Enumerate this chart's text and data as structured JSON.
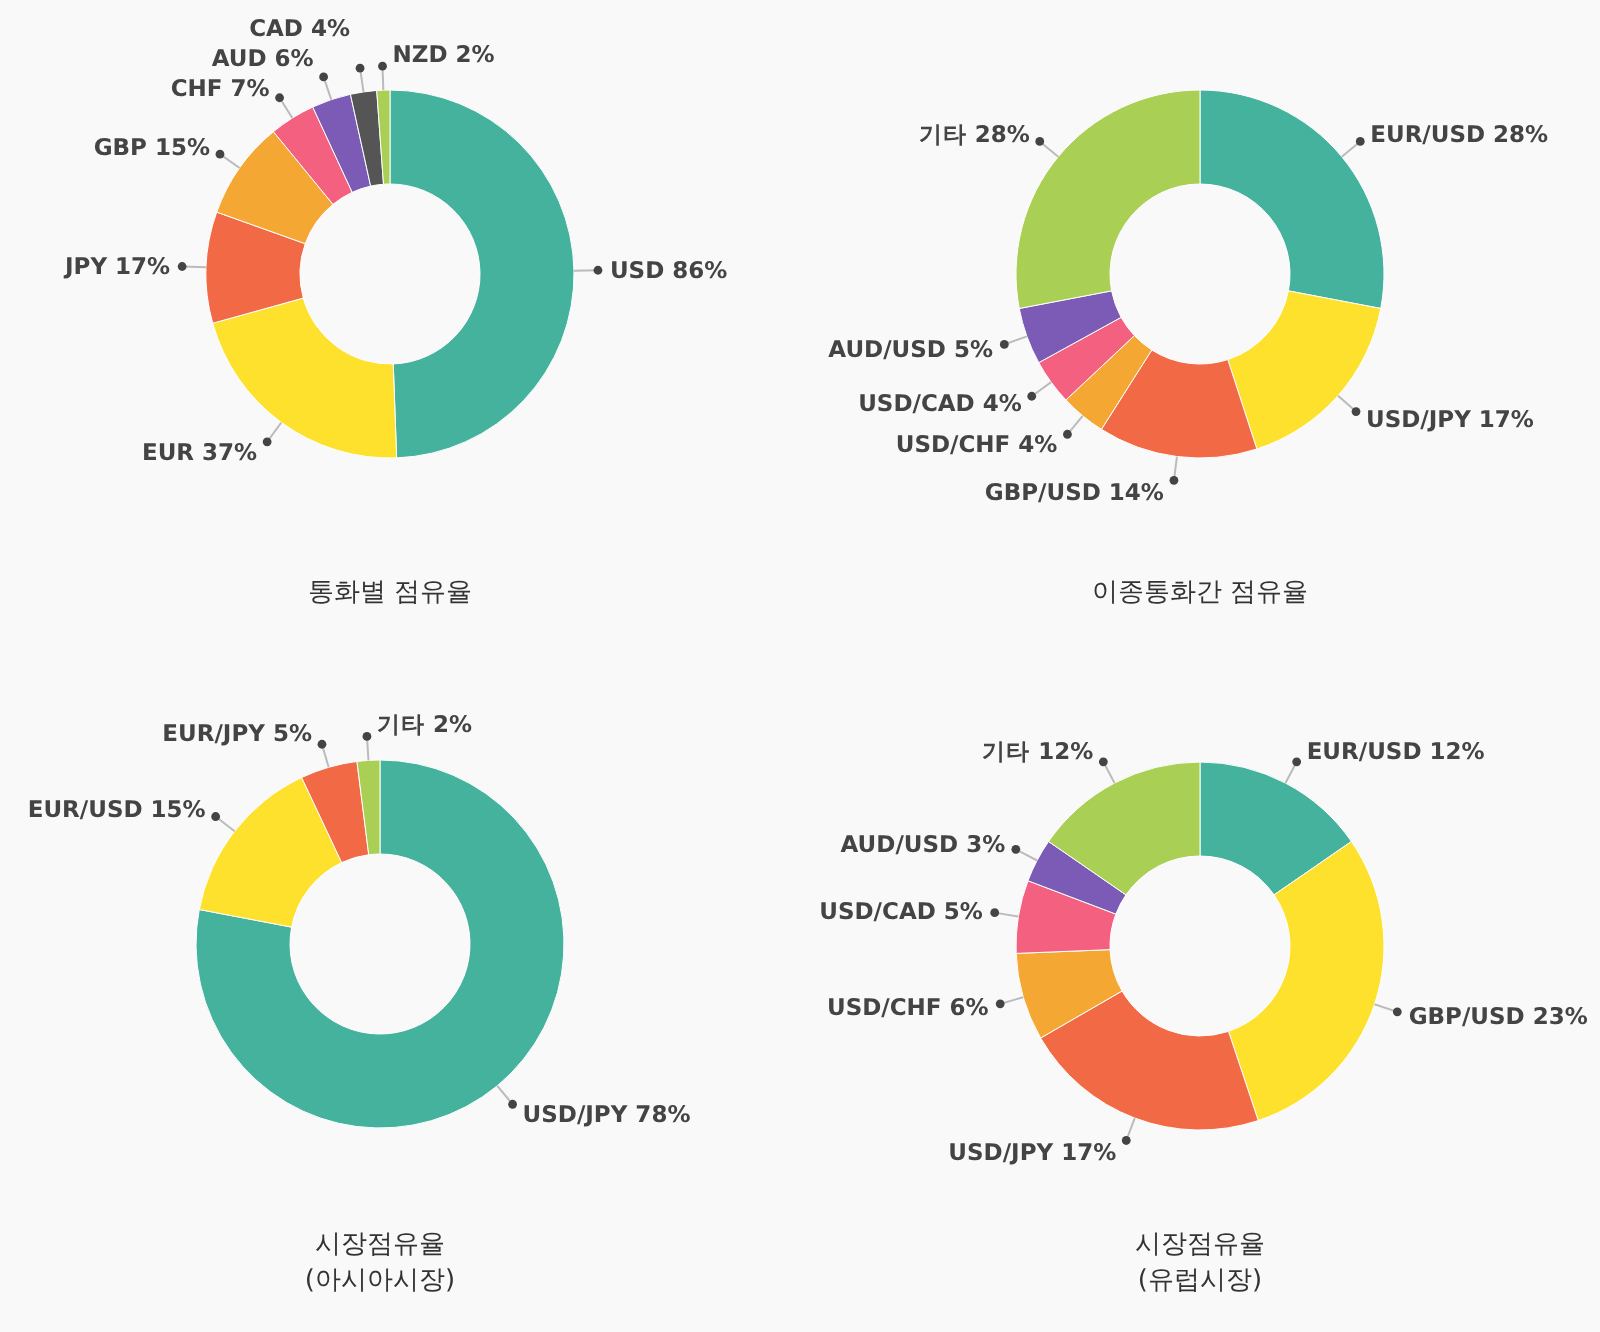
{
  "chart_data": [
    {
      "type": "donut",
      "title": "통화별 점유율",
      "categories": [
        "USD",
        "EUR",
        "JPY",
        "GBP",
        "CHF",
        "AUD",
        "CAD",
        "NZD"
      ],
      "values": [
        86,
        37,
        17,
        15,
        7,
        6,
        4,
        2
      ],
      "value_labels": [
        "86%",
        "37%",
        "17%",
        "15%",
        "7%",
        "6%",
        "4%",
        "2%"
      ],
      "colors": [
        "#45b29d",
        "#fde12d",
        "#f26a45",
        "#f5a733",
        "#f4607f",
        "#7c5bb7",
        "#555555",
        "#a9cf54"
      ]
    },
    {
      "type": "donut",
      "title": "이종통화간 점유율",
      "categories": [
        "EUR/USD",
        "USD/JPY",
        "GBP/USD",
        "USD/CHF",
        "USD/CAD",
        "AUD/USD",
        "기타"
      ],
      "values": [
        28,
        17,
        14,
        4,
        4,
        5,
        28
      ],
      "value_labels": [
        "28%",
        "17%",
        "14%",
        "4%",
        "4%",
        "5%",
        "28%"
      ],
      "colors": [
        "#45b29d",
        "#fde12d",
        "#f26a45",
        "#f5a733",
        "#f4607f",
        "#7c5bb7",
        "#a9cf54"
      ]
    },
    {
      "type": "donut",
      "title": "시장점유율",
      "subtitle": "(아시아시장)",
      "categories": [
        "USD/JPY",
        "EUR/USD",
        "EUR/JPY",
        "기타"
      ],
      "values": [
        78,
        15,
        5,
        2
      ],
      "value_labels": [
        "78%",
        "15%",
        "5%",
        "2%"
      ],
      "colors": [
        "#45b29d",
        "#fde12d",
        "#f26a45",
        "#a9cf54"
      ]
    },
    {
      "type": "donut",
      "title": "시장점유율",
      "subtitle": "(유럽시장)",
      "categories": [
        "EUR/USD",
        "GBP/USD",
        "USD/JPY",
        "USD/CHF",
        "USD/CAD",
        "AUD/USD",
        "기타"
      ],
      "values": [
        12,
        23,
        17,
        6,
        5,
        3,
        12
      ],
      "value_labels": [
        "12%",
        "23%",
        "17%",
        "6%",
        "5%",
        "3%",
        "12%"
      ],
      "colors": [
        "#45b29d",
        "#fde12d",
        "#f26a45",
        "#f5a733",
        "#f4607f",
        "#7c5bb7",
        "#a9cf54"
      ]
    }
  ]
}
